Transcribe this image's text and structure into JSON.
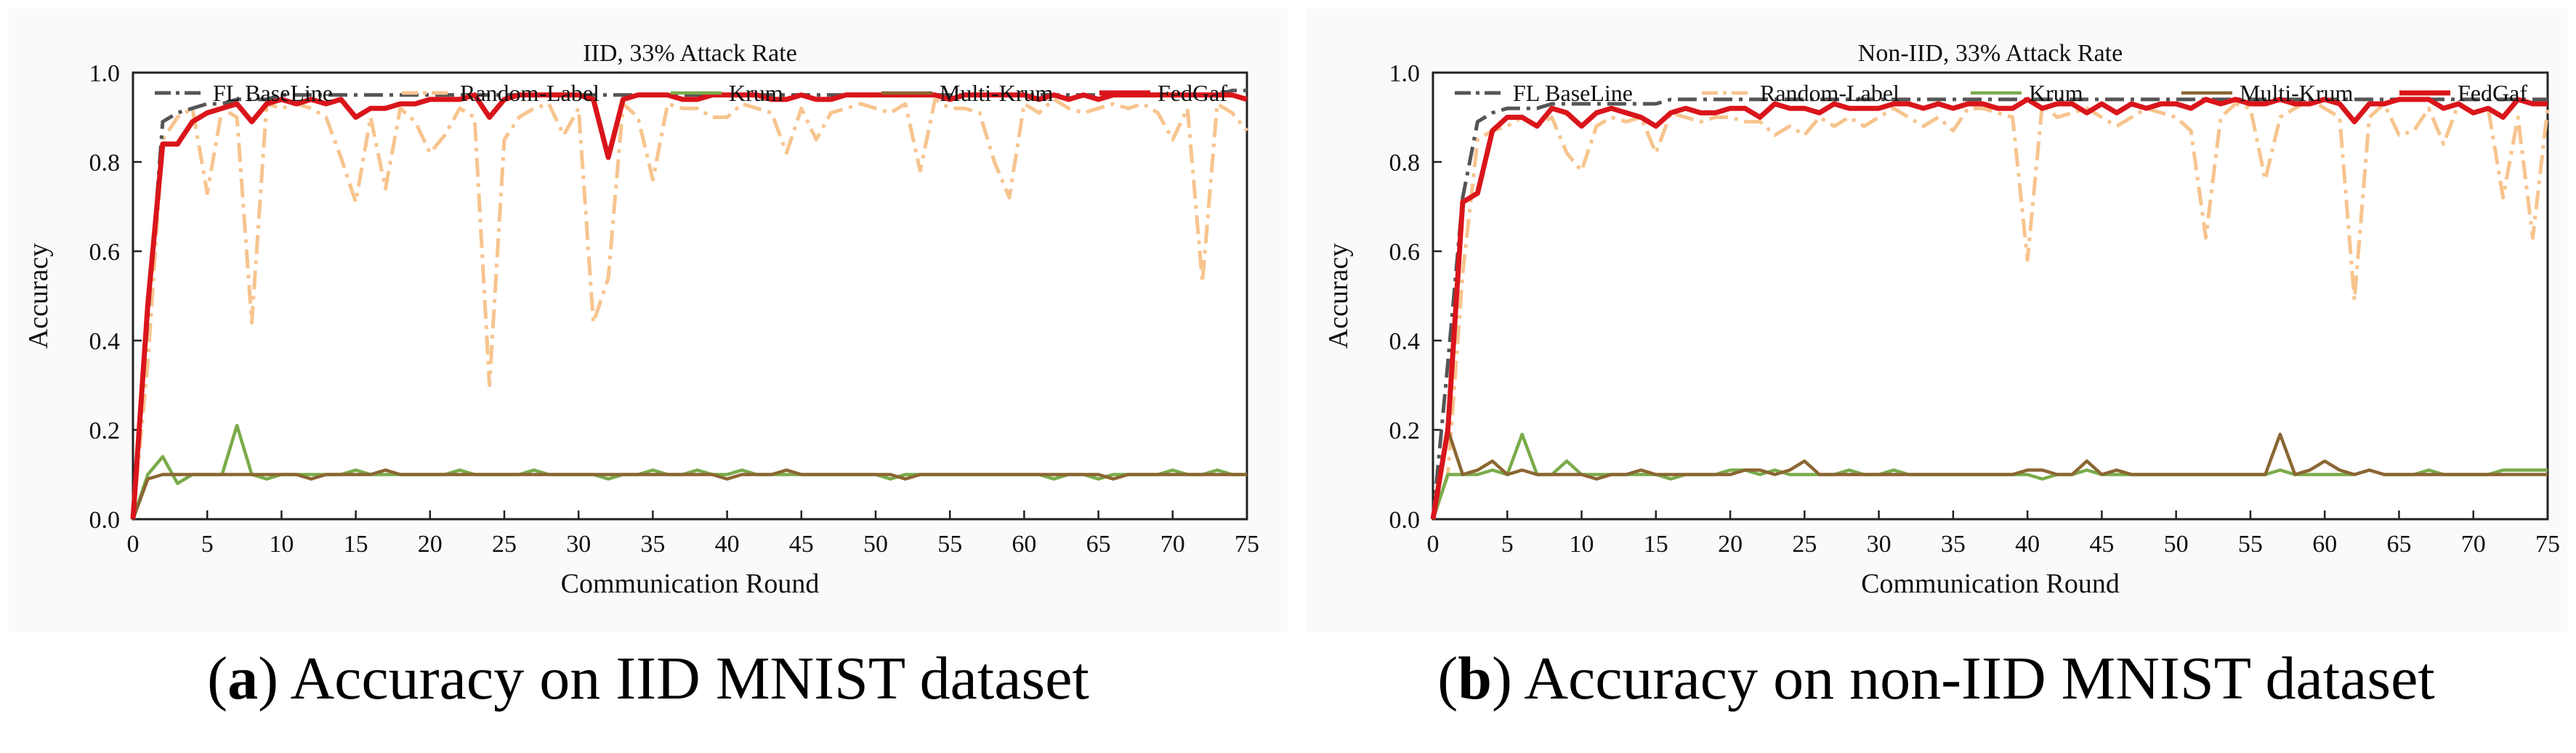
{
  "colors": {
    "fl_baseline": "#555555",
    "random_label": "#f7c48e",
    "krum": "#7aab4a",
    "multi_krum": "#8b6632",
    "fedgaf": "#d9151b"
  },
  "captions": [
    {
      "letter": "a",
      "open": "(",
      "close": ")",
      "text": " Accuracy on IID MNIST dataset"
    },
    {
      "letter": "b",
      "open": "(",
      "close": ")",
      "text": " Accuracy on non-IID MNIST dataset"
    }
  ],
  "chart_data": [
    {
      "type": "line",
      "title": "IID, 33% Attack Rate",
      "xlabel": "Communication Round",
      "ylabel": "Accuracy",
      "xlim": [
        0,
        75
      ],
      "ylim": [
        0,
        1.0
      ],
      "xticks": [
        0,
        5,
        10,
        15,
        20,
        25,
        30,
        35,
        40,
        45,
        50,
        55,
        60,
        65,
        70,
        75
      ],
      "yticks": [
        0.0,
        0.2,
        0.4,
        0.6,
        0.8,
        1.0
      ],
      "ytick_labels": [
        "0.0",
        "0.2",
        "0.4",
        "0.6",
        "0.8",
        "1.0"
      ],
      "legend": "top",
      "grid": false,
      "series": [
        {
          "name": "FL BaseLine",
          "color_key": "fl_baseline",
          "style": "dashdot",
          "values": [
            0,
            0.45,
            0.89,
            0.91,
            0.92,
            0.93,
            0.93,
            0.94,
            0.94,
            0.94,
            0.95,
            0.95,
            0.95,
            0.95,
            0.95,
            0.95,
            0.95,
            0.95,
            0.95,
            0.95,
            0.95,
            0.95,
            0.95,
            0.95,
            0.95,
            0.95,
            0.95,
            0.95,
            0.95,
            0.95,
            0.95,
            0.95,
            0.95,
            0.95,
            0.95,
            0.95,
            0.95,
            0.95,
            0.95,
            0.95,
            0.95,
            0.95,
            0.95,
            0.95,
            0.95,
            0.95,
            0.95,
            0.95,
            0.95,
            0.95,
            0.95,
            0.95,
            0.95,
            0.95,
            0.95,
            0.95,
            0.95,
            0.95,
            0.95,
            0.95,
            0.95,
            0.95,
            0.95,
            0.95,
            0.95,
            0.95,
            0.95,
            0.95,
            0.95,
            0.95,
            0.95,
            0.95,
            0.95,
            0.95,
            0.96,
            0.96
          ]
        },
        {
          "name": "Random-Label",
          "color_key": "random_label",
          "style": "dashdot",
          "values": [
            0,
            0.35,
            0.85,
            0.9,
            0.92,
            0.73,
            0.92,
            0.9,
            0.44,
            0.93,
            0.92,
            0.93,
            0.92,
            0.9,
            0.81,
            0.71,
            0.9,
            0.74,
            0.92,
            0.89,
            0.82,
            0.86,
            0.92,
            0.9,
            0.3,
            0.85,
            0.9,
            0.92,
            0.93,
            0.86,
            0.92,
            0.44,
            0.54,
            0.93,
            0.9,
            0.76,
            0.93,
            0.92,
            0.92,
            0.9,
            0.9,
            0.93,
            0.92,
            0.91,
            0.82,
            0.92,
            0.85,
            0.91,
            0.92,
            0.93,
            0.92,
            0.91,
            0.93,
            0.78,
            0.94,
            0.92,
            0.92,
            0.91,
            0.8,
            0.72,
            0.93,
            0.91,
            0.94,
            0.92,
            0.91,
            0.92,
            0.93,
            0.92,
            0.93,
            0.91,
            0.85,
            0.92,
            0.53,
            0.93,
            0.91,
            0.87
          ]
        },
        {
          "name": "Krum",
          "color_key": "krum",
          "style": "solid",
          "values": [
            0,
            0.1,
            0.14,
            0.08,
            0.1,
            0.1,
            0.1,
            0.21,
            0.1,
            0.09,
            0.1,
            0.1,
            0.1,
            0.1,
            0.1,
            0.11,
            0.1,
            0.1,
            0.1,
            0.1,
            0.1,
            0.1,
            0.11,
            0.1,
            0.1,
            0.1,
            0.1,
            0.11,
            0.1,
            0.1,
            0.1,
            0.1,
            0.09,
            0.1,
            0.1,
            0.11,
            0.1,
            0.1,
            0.11,
            0.1,
            0.1,
            0.11,
            0.1,
            0.1,
            0.1,
            0.1,
            0.1,
            0.1,
            0.1,
            0.1,
            0.1,
            0.09,
            0.1,
            0.1,
            0.1,
            0.1,
            0.1,
            0.1,
            0.1,
            0.1,
            0.1,
            0.1,
            0.09,
            0.1,
            0.1,
            0.09,
            0.1,
            0.1,
            0.1,
            0.1,
            0.11,
            0.1,
            0.1,
            0.11,
            0.1,
            0.1
          ]
        },
        {
          "name": "Multi-Krum",
          "color_key": "multi_krum",
          "style": "solid",
          "values": [
            0,
            0.09,
            0.1,
            0.1,
            0.1,
            0.1,
            0.1,
            0.1,
            0.1,
            0.1,
            0.1,
            0.1,
            0.09,
            0.1,
            0.1,
            0.1,
            0.1,
            0.11,
            0.1,
            0.1,
            0.1,
            0.1,
            0.1,
            0.1,
            0.1,
            0.1,
            0.1,
            0.1,
            0.1,
            0.1,
            0.1,
            0.1,
            0.1,
            0.1,
            0.1,
            0.1,
            0.1,
            0.1,
            0.1,
            0.1,
            0.09,
            0.1,
            0.1,
            0.1,
            0.11,
            0.1,
            0.1,
            0.1,
            0.1,
            0.1,
            0.1,
            0.1,
            0.09,
            0.1,
            0.1,
            0.1,
            0.1,
            0.1,
            0.1,
            0.1,
            0.1,
            0.1,
            0.1,
            0.1,
            0.1,
            0.1,
            0.09,
            0.1,
            0.1,
            0.1,
            0.1,
            0.1,
            0.1,
            0.1,
            0.1,
            0.1
          ]
        },
        {
          "name": "FedGaf",
          "color_key": "fedgaf",
          "style": "solid",
          "values": [
            0,
            0.48,
            0.84,
            0.84,
            0.89,
            0.91,
            0.92,
            0.93,
            0.89,
            0.93,
            0.94,
            0.93,
            0.94,
            0.93,
            0.94,
            0.9,
            0.92,
            0.92,
            0.93,
            0.93,
            0.94,
            0.94,
            0.94,
            0.95,
            0.9,
            0.94,
            0.95,
            0.95,
            0.95,
            0.95,
            0.95,
            0.94,
            0.81,
            0.94,
            0.95,
            0.95,
            0.95,
            0.94,
            0.94,
            0.95,
            0.95,
            0.95,
            0.95,
            0.94,
            0.94,
            0.95,
            0.94,
            0.94,
            0.95,
            0.95,
            0.95,
            0.95,
            0.95,
            0.95,
            0.95,
            0.94,
            0.95,
            0.95,
            0.95,
            0.95,
            0.95,
            0.94,
            0.95,
            0.94,
            0.95,
            0.94,
            0.95,
            0.95,
            0.95,
            0.95,
            0.95,
            0.95,
            0.95,
            0.95,
            0.95,
            0.94
          ]
        }
      ]
    },
    {
      "type": "line",
      "title": "Non-IID, 33% Attack Rate",
      "xlabel": "Communication Round",
      "ylabel": "Accuracy",
      "xlim": [
        0,
        75
      ],
      "ylim": [
        0,
        1.0
      ],
      "xticks": [
        0,
        5,
        10,
        15,
        20,
        25,
        30,
        35,
        40,
        45,
        50,
        55,
        60,
        65,
        70,
        75
      ],
      "yticks": [
        0.0,
        0.2,
        0.4,
        0.6,
        0.8,
        1.0
      ],
      "ytick_labels": [
        "0.0",
        "0.2",
        "0.4",
        "0.6",
        "0.8",
        "1.0"
      ],
      "legend": "top",
      "grid": false,
      "series": [
        {
          "name": "FL BaseLine",
          "color_key": "fl_baseline",
          "style": "dashdot",
          "values": [
            0,
            0.35,
            0.72,
            0.89,
            0.91,
            0.92,
            0.92,
            0.92,
            0.93,
            0.93,
            0.93,
            0.93,
            0.93,
            0.93,
            0.93,
            0.93,
            0.94,
            0.94,
            0.94,
            0.94,
            0.94,
            0.94,
            0.94,
            0.94,
            0.94,
            0.94,
            0.94,
            0.94,
            0.94,
            0.94,
            0.94,
            0.94,
            0.94,
            0.94,
            0.94,
            0.94,
            0.94,
            0.94,
            0.94,
            0.94,
            0.94,
            0.94,
            0.94,
            0.94,
            0.94,
            0.94,
            0.94,
            0.94,
            0.94,
            0.94,
            0.94,
            0.94,
            0.94,
            0.94,
            0.94,
            0.94,
            0.94,
            0.94,
            0.94,
            0.94,
            0.94,
            0.94,
            0.94,
            0.94,
            0.94,
            0.94,
            0.94,
            0.94,
            0.94,
            0.94,
            0.94,
            0.94,
            0.94,
            0.94,
            0.94,
            0.94
          ]
        },
        {
          "name": "Random-Label",
          "color_key": "random_label",
          "style": "dashdot",
          "values": [
            0,
            0.1,
            0.55,
            0.85,
            0.87,
            0.88,
            0.9,
            0.88,
            0.9,
            0.82,
            0.78,
            0.88,
            0.9,
            0.89,
            0.9,
            0.82,
            0.91,
            0.9,
            0.89,
            0.9,
            0.9,
            0.89,
            0.89,
            0.86,
            0.88,
            0.86,
            0.9,
            0.88,
            0.9,
            0.88,
            0.9,
            0.92,
            0.9,
            0.88,
            0.9,
            0.87,
            0.92,
            0.92,
            0.91,
            0.9,
            0.58,
            0.93,
            0.9,
            0.91,
            0.92,
            0.9,
            0.88,
            0.9,
            0.92,
            0.91,
            0.9,
            0.87,
            0.63,
            0.9,
            0.93,
            0.92,
            0.76,
            0.9,
            0.92,
            0.94,
            0.92,
            0.9,
            0.49,
            0.9,
            0.93,
            0.86,
            0.87,
            0.92,
            0.84,
            0.93,
            0.91,
            0.92,
            0.72,
            0.9,
            0.63,
            0.92
          ]
        },
        {
          "name": "Krum",
          "color_key": "krum",
          "style": "solid",
          "values": [
            0,
            0.1,
            0.1,
            0.1,
            0.11,
            0.1,
            0.19,
            0.1,
            0.1,
            0.13,
            0.1,
            0.1,
            0.1,
            0.1,
            0.1,
            0.1,
            0.09,
            0.1,
            0.1,
            0.1,
            0.11,
            0.11,
            0.1,
            0.11,
            0.1,
            0.1,
            0.1,
            0.1,
            0.11,
            0.1,
            0.1,
            0.11,
            0.1,
            0.1,
            0.1,
            0.1,
            0.1,
            0.1,
            0.1,
            0.1,
            0.1,
            0.09,
            0.1,
            0.1,
            0.11,
            0.1,
            0.1,
            0.1,
            0.1,
            0.1,
            0.1,
            0.1,
            0.1,
            0.1,
            0.1,
            0.1,
            0.1,
            0.11,
            0.1,
            0.1,
            0.1,
            0.1,
            0.1,
            0.11,
            0.1,
            0.1,
            0.1,
            0.11,
            0.1,
            0.1,
            0.1,
            0.1,
            0.11,
            0.11,
            0.11,
            0.11
          ]
        },
        {
          "name": "Multi-Krum",
          "color_key": "multi_krum",
          "style": "solid",
          "values": [
            0,
            0.2,
            0.1,
            0.11,
            0.13,
            0.1,
            0.11,
            0.1,
            0.1,
            0.1,
            0.1,
            0.09,
            0.1,
            0.1,
            0.11,
            0.1,
            0.1,
            0.1,
            0.1,
            0.1,
            0.1,
            0.11,
            0.11,
            0.1,
            0.11,
            0.13,
            0.1,
            0.1,
            0.1,
            0.1,
            0.1,
            0.1,
            0.1,
            0.1,
            0.1,
            0.1,
            0.1,
            0.1,
            0.1,
            0.1,
            0.11,
            0.11,
            0.1,
            0.1,
            0.13,
            0.1,
            0.11,
            0.1,
            0.1,
            0.1,
            0.1,
            0.1,
            0.1,
            0.1,
            0.1,
            0.1,
            0.1,
            0.19,
            0.1,
            0.11,
            0.13,
            0.11,
            0.1,
            0.11,
            0.1,
            0.1,
            0.1,
            0.1,
            0.1,
            0.1,
            0.1,
            0.1,
            0.1,
            0.1,
            0.1,
            0.1
          ]
        },
        {
          "name": "FedGaf",
          "color_key": "fedgaf",
          "style": "solid",
          "values": [
            0,
            0.2,
            0.71,
            0.73,
            0.87,
            0.9,
            0.9,
            0.88,
            0.92,
            0.91,
            0.88,
            0.91,
            0.92,
            0.91,
            0.9,
            0.88,
            0.91,
            0.92,
            0.91,
            0.91,
            0.92,
            0.92,
            0.9,
            0.93,
            0.92,
            0.92,
            0.91,
            0.93,
            0.92,
            0.92,
            0.92,
            0.93,
            0.93,
            0.92,
            0.93,
            0.92,
            0.93,
            0.93,
            0.92,
            0.92,
            0.94,
            0.92,
            0.93,
            0.93,
            0.91,
            0.93,
            0.91,
            0.93,
            0.92,
            0.93,
            0.93,
            0.92,
            0.94,
            0.93,
            0.94,
            0.93,
            0.93,
            0.94,
            0.93,
            0.93,
            0.94,
            0.93,
            0.89,
            0.93,
            0.93,
            0.94,
            0.94,
            0.94,
            0.92,
            0.93,
            0.91,
            0.92,
            0.9,
            0.94,
            0.93,
            0.93
          ]
        }
      ]
    }
  ]
}
